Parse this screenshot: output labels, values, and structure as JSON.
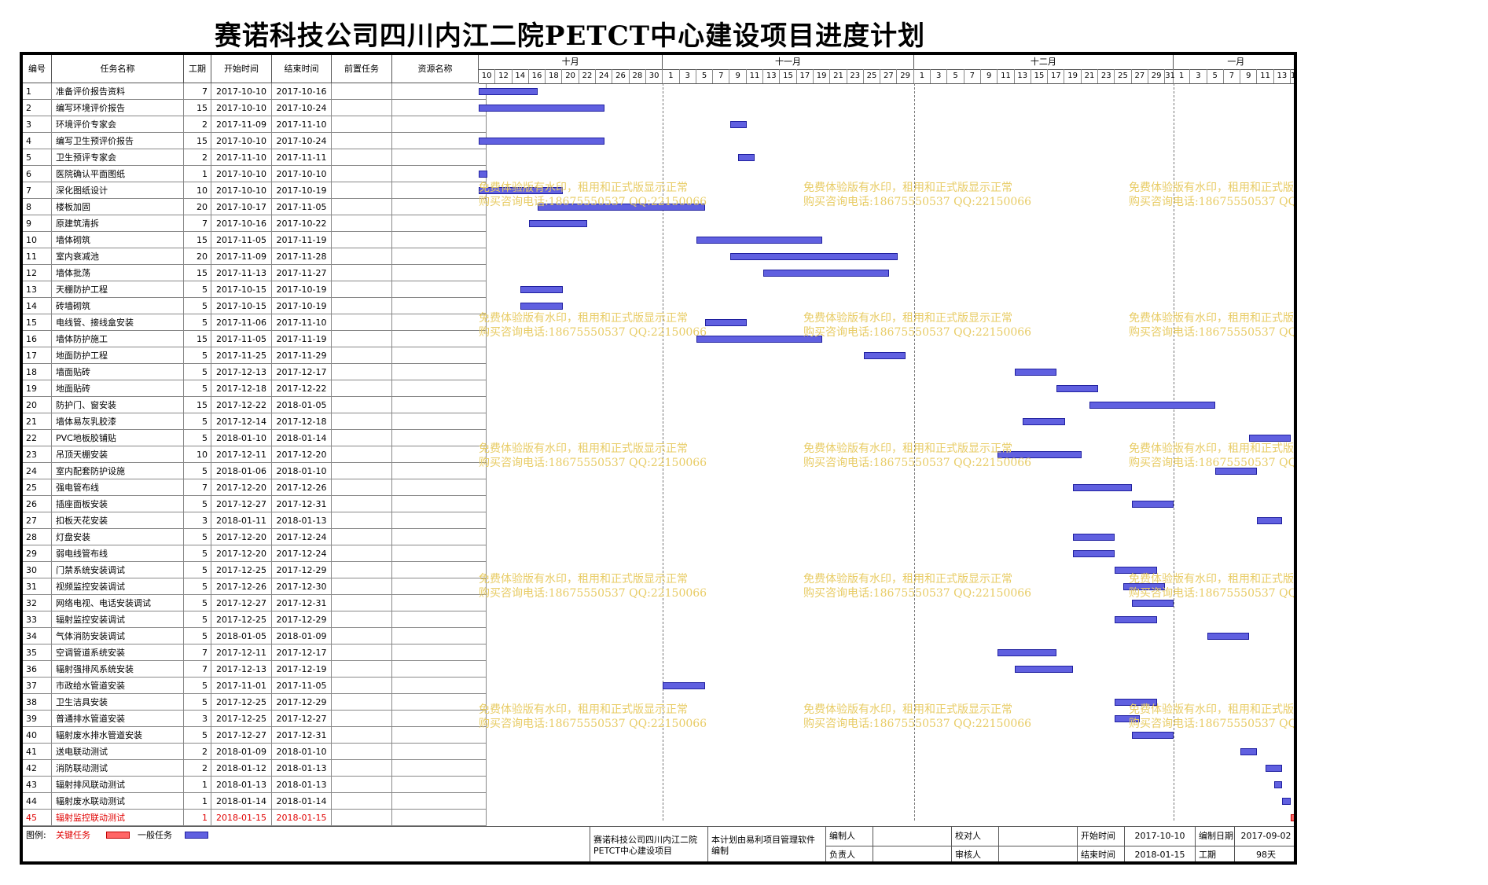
{
  "title": "赛诺科技公司四川内江二院PETCT中心建设项目进度计划",
  "columns": {
    "id": "编号",
    "name": "任务名称",
    "duration": "工期",
    "start": "开始时间",
    "end": "结束时间",
    "predecessor": "前置任务",
    "resource": "资源名称"
  },
  "months": [
    {
      "label": "十月",
      "first_day": 10,
      "last_day": 31
    },
    {
      "label": "十一月",
      "first_day": 1,
      "last_day": 30
    },
    {
      "label": "十二月",
      "first_day": 1,
      "last_day": 31
    },
    {
      "label": "一月",
      "first_day": 1,
      "last_day": 15
    }
  ],
  "timeline_start": "2017-10-10",
  "tasks": [
    {
      "id": "1",
      "name": "准备评价报告资料",
      "duration": "7",
      "start": "2017-10-10",
      "end": "2017-10-16",
      "critical": false
    },
    {
      "id": "2",
      "name": "编写环境评价报告",
      "duration": "15",
      "start": "2017-10-10",
      "end": "2017-10-24",
      "critical": false
    },
    {
      "id": "3",
      "name": "环境评价专家会",
      "duration": "2",
      "start": "2017-11-09",
      "end": "2017-11-10",
      "critical": false
    },
    {
      "id": "4",
      "name": "编写卫生预评价报告",
      "duration": "15",
      "start": "2017-10-10",
      "end": "2017-10-24",
      "critical": false
    },
    {
      "id": "5",
      "name": "卫生预评专家会",
      "duration": "2",
      "start": "2017-11-10",
      "end": "2017-11-11",
      "critical": false
    },
    {
      "id": "6",
      "name": "医院确认平面图纸",
      "duration": "1",
      "start": "2017-10-10",
      "end": "2017-10-10",
      "critical": false
    },
    {
      "id": "7",
      "name": "深化图纸设计",
      "duration": "10",
      "start": "2017-10-10",
      "end": "2017-10-19",
      "critical": false
    },
    {
      "id": "8",
      "name": "楼板加固",
      "duration": "20",
      "start": "2017-10-17",
      "end": "2017-11-05",
      "critical": false
    },
    {
      "id": "9",
      "name": "原建筑清拆",
      "duration": "7",
      "start": "2017-10-16",
      "end": "2017-10-22",
      "critical": false
    },
    {
      "id": "10",
      "name": "墙体砌筑",
      "duration": "15",
      "start": "2017-11-05",
      "end": "2017-11-19",
      "critical": false
    },
    {
      "id": "11",
      "name": "室内衰减池",
      "duration": "20",
      "start": "2017-11-09",
      "end": "2017-11-28",
      "critical": false
    },
    {
      "id": "12",
      "name": "墙体批荡",
      "duration": "15",
      "start": "2017-11-13",
      "end": "2017-11-27",
      "critical": false
    },
    {
      "id": "13",
      "name": "天棚防护工程",
      "duration": "5",
      "start": "2017-10-15",
      "end": "2017-10-19",
      "critical": false
    },
    {
      "id": "14",
      "name": "砖墙砌筑",
      "duration": "5",
      "start": "2017-10-15",
      "end": "2017-10-19",
      "critical": false
    },
    {
      "id": "15",
      "name": "电线管、接线盒安装",
      "duration": "5",
      "start": "2017-11-06",
      "end": "2017-11-10",
      "critical": false
    },
    {
      "id": "16",
      "name": "墙体防护施工",
      "duration": "15",
      "start": "2017-11-05",
      "end": "2017-11-19",
      "critical": false
    },
    {
      "id": "17",
      "name": "地面防护工程",
      "duration": "5",
      "start": "2017-11-25",
      "end": "2017-11-29",
      "critical": false
    },
    {
      "id": "18",
      "name": "墙面贴砖",
      "duration": "5",
      "start": "2017-12-13",
      "end": "2017-12-17",
      "critical": false
    },
    {
      "id": "19",
      "name": "地面贴砖",
      "duration": "5",
      "start": "2017-12-18",
      "end": "2017-12-22",
      "critical": false
    },
    {
      "id": "20",
      "name": "防护门、窗安装",
      "duration": "15",
      "start": "2017-12-22",
      "end": "2018-01-05",
      "critical": false
    },
    {
      "id": "21",
      "name": "墙体易灰乳胶漆",
      "duration": "5",
      "start": "2017-12-14",
      "end": "2017-12-18",
      "critical": false
    },
    {
      "id": "22",
      "name": "PVC地板胶铺贴",
      "duration": "5",
      "start": "2018-01-10",
      "end": "2018-01-14",
      "critical": false
    },
    {
      "id": "23",
      "name": "吊顶天棚安装",
      "duration": "10",
      "start": "2017-12-11",
      "end": "2017-12-20",
      "critical": false
    },
    {
      "id": "24",
      "name": "室内配套防护设施",
      "duration": "5",
      "start": "2018-01-06",
      "end": "2018-01-10",
      "critical": false
    },
    {
      "id": "25",
      "name": "强电管布线",
      "duration": "7",
      "start": "2017-12-20",
      "end": "2017-12-26",
      "critical": false
    },
    {
      "id": "26",
      "name": "插座面板安装",
      "duration": "5",
      "start": "2017-12-27",
      "end": "2017-12-31",
      "critical": false
    },
    {
      "id": "27",
      "name": "扣板天花安装",
      "duration": "3",
      "start": "2018-01-11",
      "end": "2018-01-13",
      "critical": false
    },
    {
      "id": "28",
      "name": "灯盘安装",
      "duration": "5",
      "start": "2017-12-20",
      "end": "2017-12-24",
      "critical": false
    },
    {
      "id": "29",
      "name": "弱电线管布线",
      "duration": "5",
      "start": "2017-12-20",
      "end": "2017-12-24",
      "critical": false
    },
    {
      "id": "30",
      "name": "门禁系统安装调试",
      "duration": "5",
      "start": "2017-12-25",
      "end": "2017-12-29",
      "critical": false
    },
    {
      "id": "31",
      "name": "视频监控安装调试",
      "duration": "5",
      "start": "2017-12-26",
      "end": "2017-12-30",
      "critical": false
    },
    {
      "id": "32",
      "name": "网络电视、电话安装调试",
      "duration": "5",
      "start": "2017-12-27",
      "end": "2017-12-31",
      "critical": false
    },
    {
      "id": "33",
      "name": "辐射监控安装调试",
      "duration": "5",
      "start": "2017-12-25",
      "end": "2017-12-29",
      "critical": false
    },
    {
      "id": "34",
      "name": "气体消防安装调试",
      "duration": "5",
      "start": "2018-01-05",
      "end": "2018-01-09",
      "critical": false
    },
    {
      "id": "35",
      "name": "空调管道系统安装",
      "duration": "7",
      "start": "2017-12-11",
      "end": "2017-12-17",
      "critical": false
    },
    {
      "id": "36",
      "name": "辐射强排风系统安装",
      "duration": "7",
      "start": "2017-12-13",
      "end": "2017-12-19",
      "critical": false
    },
    {
      "id": "37",
      "name": "市政给水管道安装",
      "duration": "5",
      "start": "2017-11-01",
      "end": "2017-11-05",
      "critical": false
    },
    {
      "id": "38",
      "name": "卫生洁具安装",
      "duration": "5",
      "start": "2017-12-25",
      "end": "2017-12-29",
      "critical": false
    },
    {
      "id": "39",
      "name": "普通排水管道安装",
      "duration": "3",
      "start": "2017-12-25",
      "end": "2017-12-27",
      "critical": false
    },
    {
      "id": "40",
      "name": "辐射废水排水管道安装",
      "duration": "5",
      "start": "2017-12-27",
      "end": "2017-12-31",
      "critical": false
    },
    {
      "id": "41",
      "name": "送电联动测试",
      "duration": "2",
      "start": "2018-01-09",
      "end": "2018-01-10",
      "critical": false
    },
    {
      "id": "42",
      "name": "消防联动测试",
      "duration": "2",
      "start": "2018-01-12",
      "end": "2018-01-13",
      "critical": false
    },
    {
      "id": "43",
      "name": "辐射排风联动测试",
      "duration": "1",
      "start": "2018-01-13",
      "end": "2018-01-13",
      "critical": false
    },
    {
      "id": "44",
      "name": "辐射废水联动测试",
      "duration": "1",
      "start": "2018-01-14",
      "end": "2018-01-14",
      "critical": false
    },
    {
      "id": "45",
      "name": "辐射监控联动测试",
      "duration": "1",
      "start": "2018-01-15",
      "end": "2018-01-15",
      "critical": true
    }
  ],
  "watermark": {
    "line1": "免费体验版有水印，租用和正式版显示正常",
    "line2": "购买咨询电话:18675550537 QQ:22150066"
  },
  "legend": {
    "label": "图例:",
    "critical": "关键任务",
    "normal": "一般任务"
  },
  "footer": {
    "project": "赛诺科技公司四川内江二院PETCT中心建设项目",
    "note": "本计划由易利项目管理软件编制",
    "compiler_label": "编制人",
    "compiler": "",
    "reviewer_label": "校对人",
    "reviewer": "",
    "owner_label": "负责人",
    "owner": "",
    "auditor_label": "审核人",
    "auditor": "",
    "start_label": "开始时间",
    "start": "2017-10-10",
    "end_label": "结束时间",
    "end": "2018-01-15",
    "date_label": "编制日期",
    "date": "2017-09-02",
    "duration_label": "工期",
    "duration": "98天"
  },
  "colors": {
    "normal_bar": "#6060e0",
    "critical_bar": "#ff6666",
    "critical_text": "#e00000",
    "watermark": "#e8cc66"
  }
}
